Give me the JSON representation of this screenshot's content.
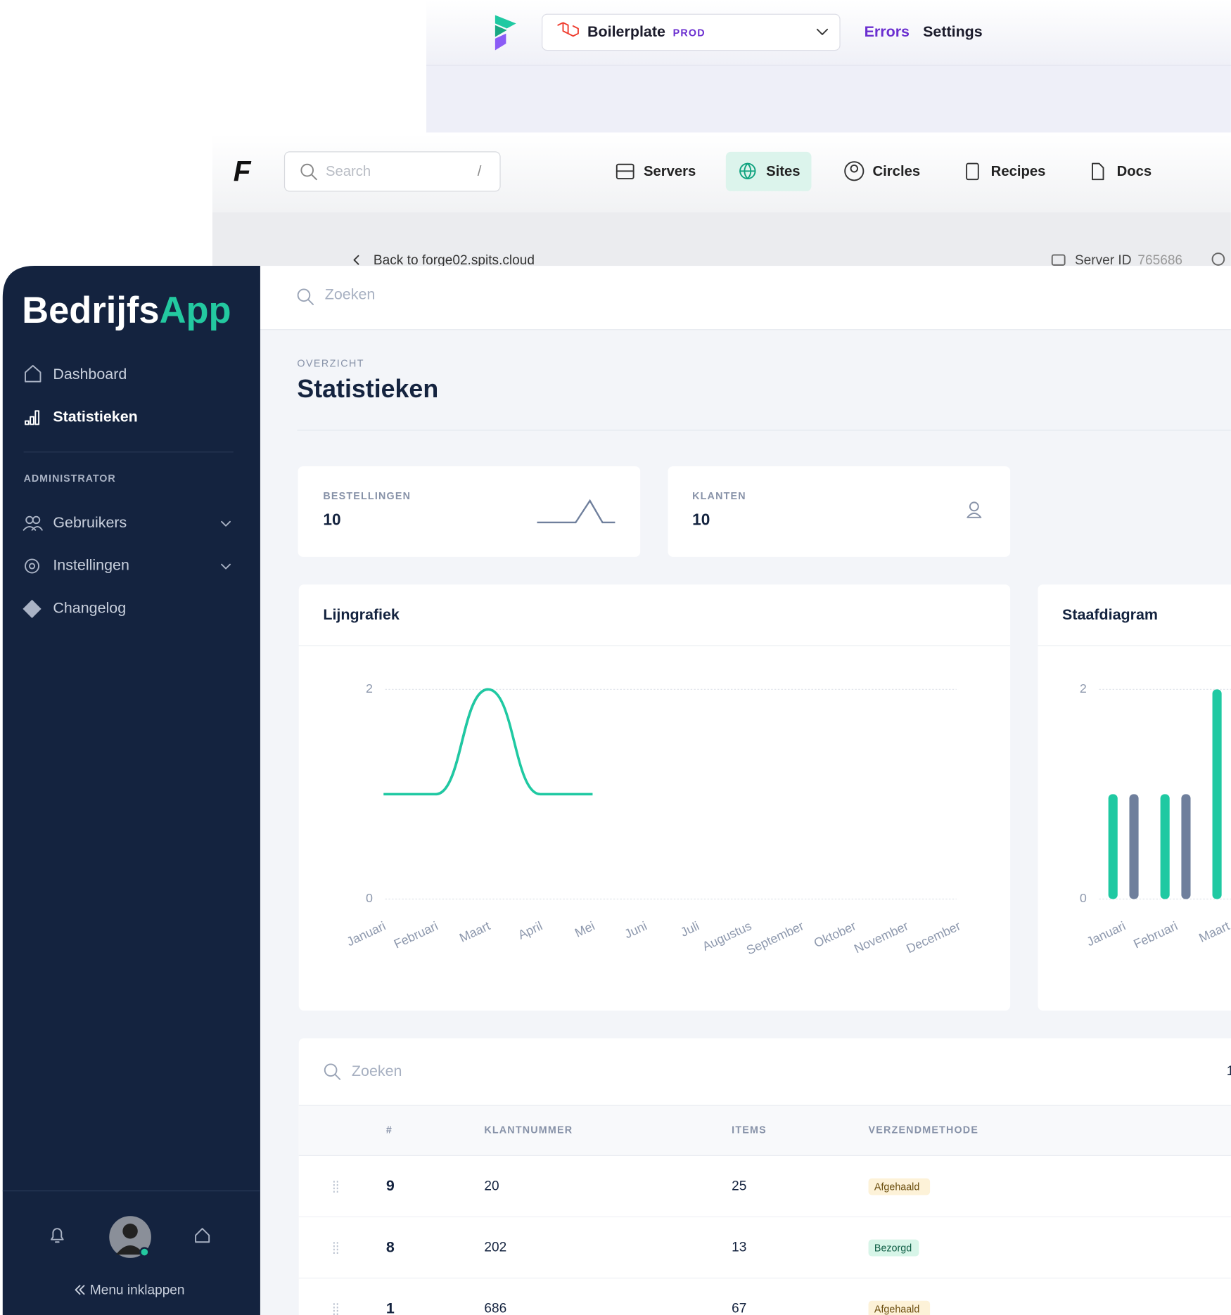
{
  "forge_header": {
    "project": "Boilerplate",
    "env": "PROD",
    "links": [
      "Errors",
      "Settings"
    ]
  },
  "forge_nav": {
    "search_placeholder": "Search",
    "search_shortcut": "/",
    "items": [
      "Servers",
      "Sites",
      "Circles",
      "Recipes",
      "Docs"
    ],
    "back_link": "Back to forge02.spits.cloud",
    "server_id_label": "Server ID",
    "server_id": "765686"
  },
  "sidebar": {
    "brand_1": "Bedrijfs",
    "brand_2": "App",
    "menu": [
      "Dashboard",
      "Statistieken"
    ],
    "section": "ADMINISTRATOR",
    "admin_menu": [
      "Gebruikers",
      "Instellingen",
      "Changelog"
    ],
    "collapse": "Menu inklappen"
  },
  "search_placeholder": "Zoeken",
  "header": {
    "eyebrow": "OVERZICHT",
    "title": "Statistieken"
  },
  "stats": [
    {
      "label": "BESTELLINGEN",
      "value": 10
    },
    {
      "label": "KLANTEN",
      "value": 10
    }
  ],
  "chart_data": [
    {
      "type": "line",
      "title": "Lijngrafiek",
      "categories": [
        "Januari",
        "Februari",
        "Maart",
        "April",
        "Mei",
        "Juni",
        "Juli",
        "Augustus",
        "September",
        "Oktober",
        "November",
        "December"
      ],
      "series": [
        {
          "color": "#6f7f9c",
          "values": [
            null,
            1,
            2,
            null,
            null,
            null,
            null,
            null,
            null,
            null,
            null,
            null
          ]
        },
        {
          "color": "#1fc9a2",
          "values": [
            1,
            1,
            2,
            1,
            1,
            null,
            null,
            null,
            null,
            null,
            null,
            null
          ]
        }
      ],
      "ylim": [
        0,
        2
      ],
      "yticks": [
        0,
        2
      ],
      "grid": true
    },
    {
      "type": "bar",
      "title": "Staafdiagram",
      "categories": [
        "Januari",
        "Februari",
        "Maart"
      ],
      "series": [
        {
          "color": "#1fc9a2",
          "values": [
            1,
            1,
            2
          ]
        },
        {
          "color": "#6f7f9c",
          "values": [
            1,
            1,
            null
          ]
        }
      ],
      "ylim": [
        0,
        2
      ],
      "yticks": [
        0,
        2
      ],
      "grid": true
    }
  ],
  "table": {
    "search_placeholder": "Zoeken",
    "page": 1,
    "columns": [
      "#",
      "KLANTNUMMER",
      "ITEMS",
      "VERZENDMETHODE"
    ],
    "rows": [
      [
        9,
        20,
        25,
        "Afgehaald"
      ],
      [
        8,
        202,
        13,
        "Bezorgd"
      ],
      [
        1,
        686,
        67,
        "Afgehaald"
      ]
    ]
  }
}
